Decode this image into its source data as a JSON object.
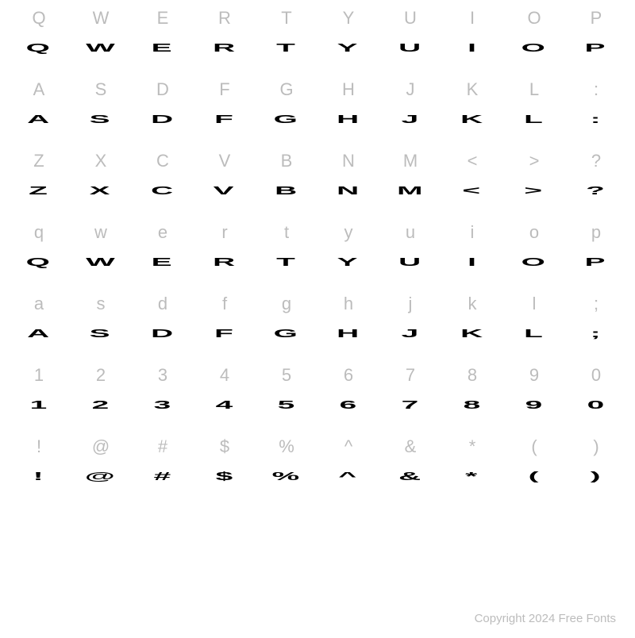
{
  "grid": {
    "rows": [
      {
        "ref": [
          "Q",
          "W",
          "E",
          "R",
          "T",
          "Y",
          "U",
          "I",
          "O",
          "P"
        ],
        "sample": [
          "Q",
          "W",
          "E",
          "R",
          "T",
          "Y",
          "U",
          "I",
          "O",
          "P"
        ]
      },
      {
        "ref": [
          "A",
          "S",
          "D",
          "F",
          "G",
          "H",
          "J",
          "K",
          "L",
          ":"
        ],
        "sample": [
          "A",
          "S",
          "D",
          "F",
          "G",
          "H",
          "J",
          "K",
          "L",
          ":"
        ]
      },
      {
        "ref": [
          "Z",
          "X",
          "C",
          "V",
          "B",
          "N",
          "M",
          "<",
          ">",
          "?"
        ],
        "sample": [
          "Z",
          "X",
          "C",
          "V",
          "B",
          "N",
          "M",
          "<",
          ">",
          "?"
        ]
      },
      {
        "ref": [
          "q",
          "w",
          "e",
          "r",
          "t",
          "y",
          "u",
          "i",
          "o",
          "p"
        ],
        "sample": [
          "Q",
          "W",
          "E",
          "R",
          "T",
          "Y",
          "U",
          "I",
          "O",
          "P"
        ]
      },
      {
        "ref": [
          "a",
          "s",
          "d",
          "f",
          "g",
          "h",
          "j",
          "k",
          "l",
          ";"
        ],
        "sample": [
          "A",
          "S",
          "D",
          "F",
          "G",
          "H",
          "J",
          "K",
          "L",
          ";"
        ]
      },
      {
        "ref": [
          "1",
          "2",
          "3",
          "4",
          "5",
          "6",
          "7",
          "8",
          "9",
          "0"
        ],
        "sample": [
          "1",
          "2",
          "3",
          "4",
          "5",
          "6",
          "7",
          "8",
          "9",
          "0"
        ]
      },
      {
        "ref": [
          "!",
          "@",
          "#",
          "$",
          "%",
          "^",
          "&",
          "*",
          "(",
          ")"
        ],
        "sample": [
          "!",
          "@",
          "#",
          "$",
          "%",
          "^",
          "&",
          "*",
          "(",
          ")"
        ]
      }
    ]
  },
  "footer": {
    "text": "Copyright 2024 Free Fonts"
  },
  "colors": {
    "background": "#ffffff",
    "reference_text": "#bcbcbc",
    "sample_text": "#000000",
    "footer_text": "#bcbcbc"
  },
  "typography": {
    "ref_fontsize": 22,
    "sample_fontsize": 21,
    "footer_fontsize": 15,
    "sample_stretch_x": 1.85,
    "sample_stretch_y": 0.7
  }
}
